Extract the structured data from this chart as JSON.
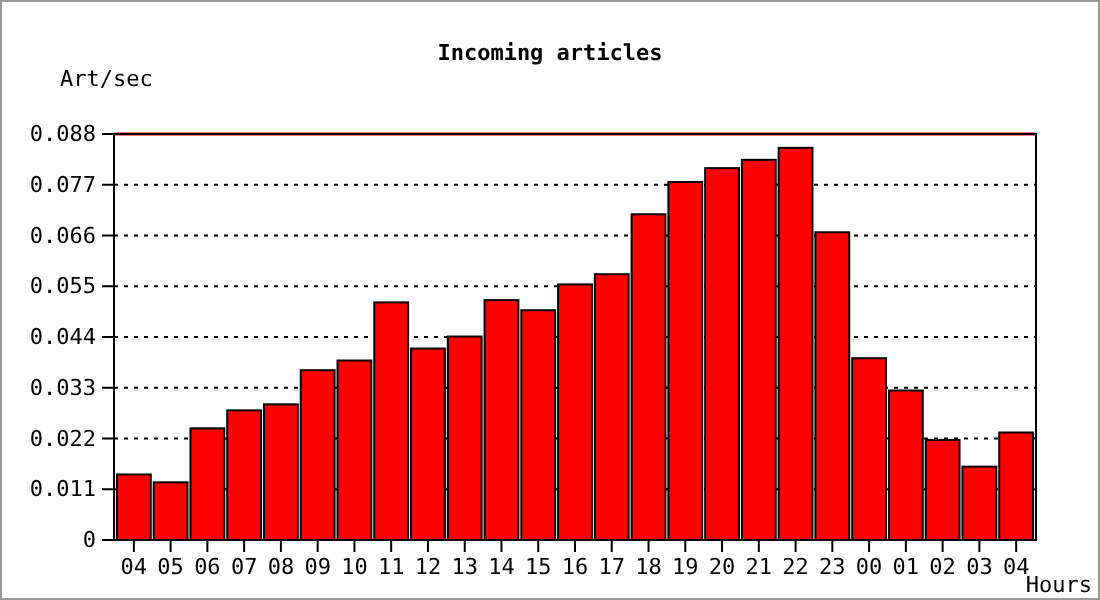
{
  "chart_data": {
    "type": "bar",
    "title": "Incoming articles",
    "ylabel": "Art/sec",
    "xlabel": "Hours",
    "categories": [
      "04",
      "05",
      "06",
      "07",
      "08",
      "09",
      "10",
      "11",
      "12",
      "13",
      "14",
      "15",
      "16",
      "17",
      "18",
      "19",
      "20",
      "21",
      "22",
      "23",
      "00",
      "01",
      "02",
      "03",
      "04"
    ],
    "values": [
      0.0142,
      0.0125,
      0.0242,
      0.0281,
      0.0294,
      0.0368,
      0.0389,
      0.0515,
      0.0415,
      0.0441,
      0.052,
      0.0498,
      0.0554,
      0.0576,
      0.0706,
      0.0776,
      0.0806,
      0.0824,
      0.085,
      0.0667,
      0.0394,
      0.0324,
      0.0217,
      0.0159,
      0.0233
    ],
    "color": "#ff0000",
    "ylim": [
      0,
      0.088
    ],
    "yticks": [
      0,
      0.011,
      0.022,
      0.033,
      0.044,
      0.055,
      0.066,
      0.077,
      0.088
    ],
    "grid": "y",
    "line_style": "dotted",
    "ref_lines": [
      {
        "axis": "y",
        "value": 0.088,
        "color": "#ff0000"
      }
    ]
  }
}
